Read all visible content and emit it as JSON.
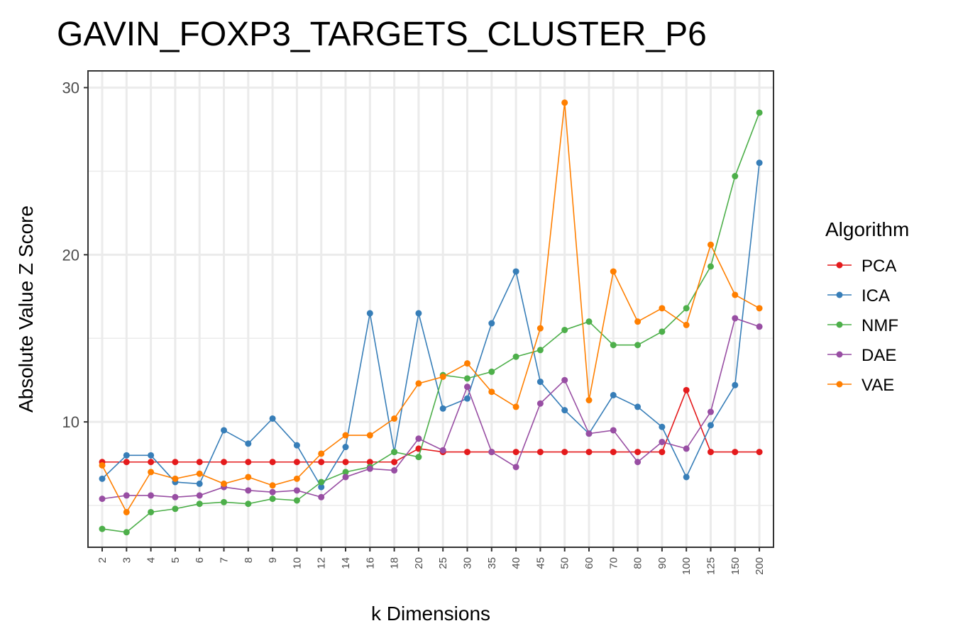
{
  "chart_data": {
    "type": "line",
    "title": "GAVIN_FOXP3_TARGETS_CLUSTER_P6",
    "xlabel": "k Dimensions",
    "ylabel": "Absolute Value Z Score",
    "categories": [
      "2",
      "3",
      "4",
      "5",
      "6",
      "7",
      "8",
      "9",
      "10",
      "12",
      "14",
      "16",
      "18",
      "20",
      "25",
      "30",
      "35",
      "40",
      "45",
      "50",
      "60",
      "70",
      "80",
      "90",
      "100",
      "125",
      "150",
      "200"
    ],
    "ylim": [
      2.5,
      31
    ],
    "yticks": [
      10,
      20,
      30
    ],
    "ytick_labels": [
      "10",
      "20",
      "30"
    ],
    "grid": true,
    "legend_title": "Algorithm",
    "legend_position": "right",
    "series": [
      {
        "name": "PCA",
        "color": "#e41a1c",
        "values": [
          7.6,
          7.6,
          7.6,
          7.6,
          7.6,
          7.6,
          7.6,
          7.6,
          7.6,
          7.6,
          7.6,
          7.6,
          7.6,
          8.4,
          8.2,
          8.2,
          8.2,
          8.2,
          8.2,
          8.2,
          8.2,
          8.2,
          8.2,
          8.2,
          11.9,
          8.2,
          8.2,
          8.2
        ]
      },
      {
        "name": "ICA",
        "color": "#377eb8",
        "values": [
          6.6,
          8.0,
          8.0,
          6.4,
          6.3,
          9.5,
          8.7,
          10.2,
          8.6,
          6.1,
          8.5,
          16.5,
          8.2,
          16.5,
          10.8,
          11.4,
          15.9,
          19.0,
          12.4,
          10.7,
          9.3,
          11.6,
          10.9,
          9.7,
          6.7,
          9.8,
          12.2,
          25.5
        ]
      },
      {
        "name": "NMF",
        "color": "#4daf4a",
        "values": [
          3.6,
          3.4,
          4.6,
          4.8,
          5.1,
          5.2,
          5.1,
          5.4,
          5.3,
          6.4,
          7.0,
          7.3,
          8.2,
          7.9,
          12.8,
          12.6,
          13.0,
          13.9,
          14.3,
          15.5,
          16.0,
          14.6,
          14.6,
          15.4,
          16.8,
          19.3,
          24.7,
          28.5
        ]
      },
      {
        "name": "DAE",
        "color": "#984ea3",
        "values": [
          5.4,
          5.6,
          5.6,
          5.5,
          5.6,
          6.1,
          5.9,
          5.8,
          5.9,
          5.5,
          6.7,
          7.2,
          7.1,
          9.0,
          8.3,
          12.1,
          8.2,
          7.3,
          11.1,
          12.5,
          9.3,
          9.5,
          7.6,
          8.8,
          8.4,
          10.6,
          16.2,
          15.7
        ]
      },
      {
        "name": "VAE",
        "color": "#ff7f00",
        "values": [
          7.4,
          4.6,
          7.0,
          6.6,
          6.9,
          6.3,
          6.7,
          6.2,
          6.6,
          8.1,
          9.2,
          9.2,
          10.2,
          12.3,
          12.7,
          13.5,
          11.8,
          10.9,
          15.6,
          29.1,
          11.3,
          19.0,
          16.0,
          16.8,
          15.8,
          20.6,
          17.6,
          16.8
        ]
      }
    ]
  }
}
